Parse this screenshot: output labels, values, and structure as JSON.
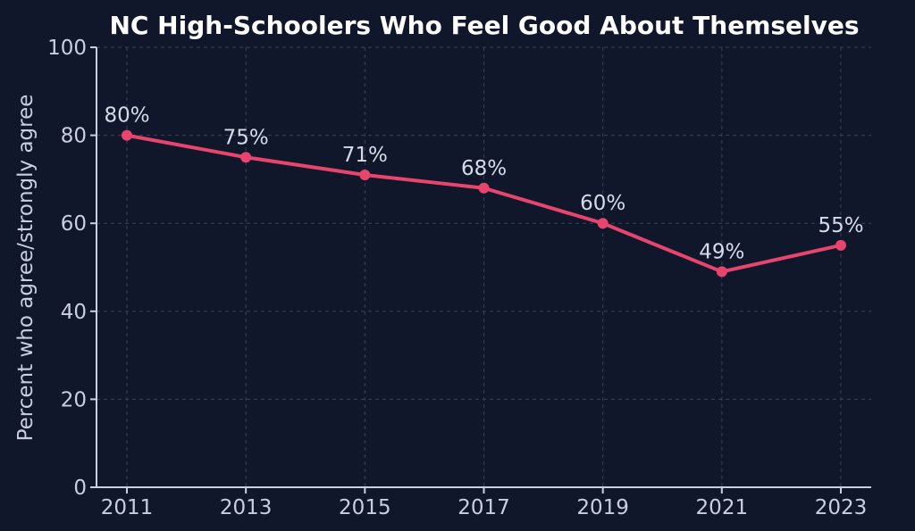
{
  "chart_data": {
    "type": "line",
    "title": "NC High-Schoolers Who Feel Good About Themselves",
    "xlabel": "",
    "ylabel": "Percent who agree/strongly agree",
    "categories": [
      "2011",
      "2013",
      "2015",
      "2017",
      "2019",
      "2021",
      "2023"
    ],
    "series": [
      {
        "values": [
          80,
          75,
          71,
          68,
          60,
          49,
          55
        ]
      }
    ],
    "data_labels": [
      "80%",
      "75%",
      "71%",
      "68%",
      "60%",
      "49%",
      "55%"
    ],
    "ylim": [
      0,
      100
    ],
    "yticks": [
      0,
      20,
      40,
      60,
      80,
      100
    ],
    "grid": true,
    "line_color": "#e8456e",
    "background_color": "#11172a"
  }
}
